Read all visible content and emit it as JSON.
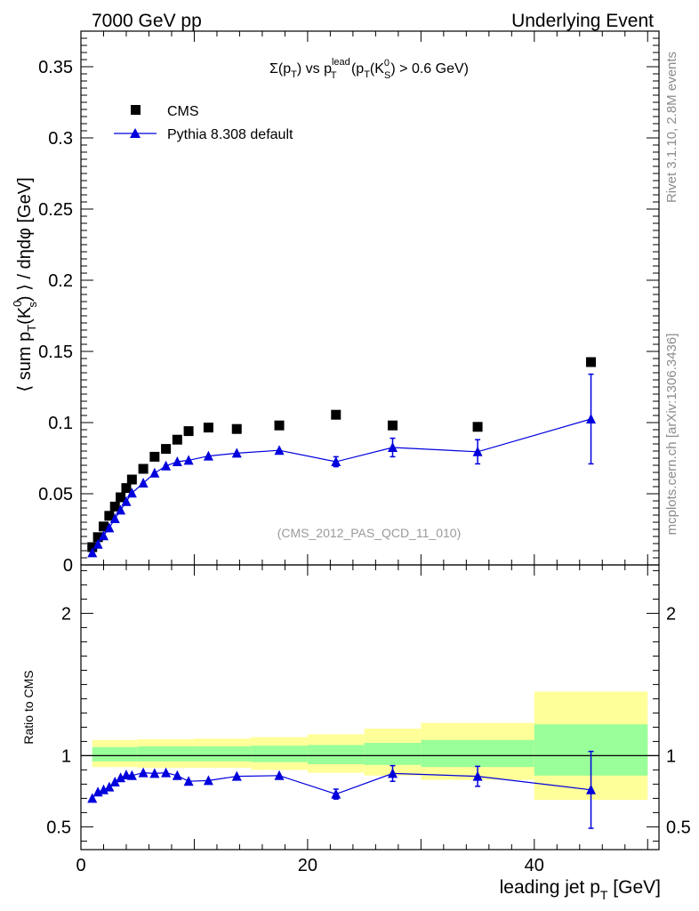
{
  "header": {
    "left": "7000 GeV pp",
    "right": "Underlying Event"
  },
  "side_labels": {
    "rivet": "Rivet 3.1.10,  2.8M events",
    "mcplots": "mcplots.cern.ch [arXiv:1306.3436]"
  },
  "chart_data": [
    {
      "type": "scatter",
      "title": "Σ(p_T) vs p_T^lead (p_T(K_S^0) > 0.6 GeV)",
      "title_parts": {
        "sigma": "Σ(p",
        "sub_t1": "T",
        "vs": ") vs p",
        "sup_lead": "lead",
        "sub_t2": "T",
        "paren": " (p",
        "sub_t3": "T",
        "ks": "(K",
        "sup_0": "0",
        "sub_s": "S",
        "tail": ") > 0.6 GeV)"
      },
      "ylabel": "⟨ sum p_T(K_s^0) ⟩ / dηdφ [GeV]",
      "ylabel_parts": {
        "a": "⟨ sum p",
        "sub_t": "T",
        "b": "(K",
        "sup_0": "0",
        "sub_s": "s",
        "c": ") ⟩ / dηdφ [GeV]"
      },
      "watermark": "(CMS_2012_PAS_QCD_11_010)",
      "xlim": [
        0,
        51
      ],
      "ylim": [
        0,
        0.375
      ],
      "y_ticks": [
        0,
        0.05,
        0.1,
        0.15,
        0.2,
        0.25,
        0.3,
        0.35
      ],
      "y_tick_labels": [
        "0",
        "0.05",
        "0.1",
        "0.15",
        "0.2",
        "0.25",
        "0.3",
        "0.35"
      ],
      "legend_position": "top-left",
      "series": [
        {
          "name": "CMS",
          "marker": "square",
          "color": "#000000",
          "x": [
            1.0,
            1.5,
            2.0,
            2.5,
            3.0,
            3.5,
            4.0,
            4.5,
            5.5,
            6.5,
            7.5,
            8.5,
            9.5,
            11.25,
            13.75,
            17.5,
            22.5,
            27.5,
            35.0,
            45.0
          ],
          "y": [
            0.0125,
            0.0195,
            0.027,
            0.0345,
            0.041,
            0.0475,
            0.054,
            0.06,
            0.0675,
            0.076,
            0.0815,
            0.088,
            0.094,
            0.0965,
            0.0955,
            0.098,
            0.1055,
            0.098,
            0.097,
            0.1425
          ]
        },
        {
          "name": "Pythia 8.308 default",
          "marker": "triangle",
          "color": "#0000dd",
          "x": [
            1.0,
            1.5,
            2.0,
            2.5,
            3.0,
            3.5,
            4.0,
            4.5,
            5.5,
            6.5,
            7.5,
            8.5,
            9.5,
            11.25,
            13.75,
            17.5,
            22.5,
            27.5,
            35.0,
            45.0
          ],
          "y": [
            0.0085,
            0.0145,
            0.0205,
            0.026,
            0.0325,
            0.0385,
            0.0445,
            0.0505,
            0.0575,
            0.0645,
            0.0695,
            0.0725,
            0.0735,
            0.0765,
            0.0785,
            0.0805,
            0.0725,
            0.0825,
            0.0795,
            0.1025
          ],
          "y_err": [
            0,
            0,
            0,
            0,
            0,
            0,
            0,
            0,
            0,
            0,
            0,
            0,
            0,
            0,
            0,
            0,
            0.0035,
            0.0065,
            0.0085,
            0.0315
          ]
        }
      ]
    },
    {
      "type": "scatter",
      "ylabel": "Ratio to CMS",
      "xlabel": "leading jet p_T [GeV]",
      "xlabel_parts": {
        "a": "leading jet p",
        "sub_t": "T",
        "b": " [GeV]"
      },
      "xlim": [
        0,
        51
      ],
      "ylim": [
        0.34,
        2.34
      ],
      "x_ticks": [
        0,
        20,
        40
      ],
      "x_tick_labels": [
        "0",
        "20",
        "40"
      ],
      "y_ticks": [
        0.5,
        1,
        2
      ],
      "y_tick_labels": [
        "0.5",
        "1",
        "2"
      ],
      "reference_line": 1,
      "bands": {
        "edges": [
          1,
          5,
          10,
          15,
          20,
          25,
          30,
          40,
          50
        ],
        "green_low": [
          0.96,
          0.96,
          0.96,
          0.955,
          0.94,
          0.935,
          0.92,
          0.86
        ],
        "green_high": [
          1.06,
          1.065,
          1.065,
          1.07,
          1.075,
          1.09,
          1.11,
          1.22
        ],
        "yellow_low": [
          0.92,
          0.915,
          0.915,
          0.9,
          0.88,
          0.86,
          0.83,
          0.69
        ],
        "yellow_high": [
          1.11,
          1.115,
          1.12,
          1.13,
          1.15,
          1.19,
          1.23,
          1.45
        ],
        "green_color": "#99ff99",
        "yellow_color": "#ffff99"
      },
      "series": [
        {
          "name": "Pythia 8.308 default",
          "marker": "triangle",
          "color": "#0000dd",
          "x": [
            1.0,
            1.5,
            2.0,
            2.5,
            3.0,
            3.5,
            4.0,
            4.5,
            5.5,
            6.5,
            7.5,
            8.5,
            9.5,
            11.25,
            13.75,
            17.5,
            22.5,
            27.5,
            35.0,
            45.0
          ],
          "y": [
            0.7,
            0.745,
            0.76,
            0.78,
            0.815,
            0.845,
            0.865,
            0.86,
            0.88,
            0.875,
            0.88,
            0.86,
            0.82,
            0.825,
            0.855,
            0.86,
            0.73,
            0.875,
            0.855,
            0.76
          ],
          "y_err": [
            0,
            0,
            0,
            0,
            0,
            0,
            0,
            0,
            0,
            0,
            0,
            0,
            0,
            0,
            0,
            0,
            0.035,
            0.055,
            0.07,
            0.27
          ]
        }
      ]
    }
  ]
}
